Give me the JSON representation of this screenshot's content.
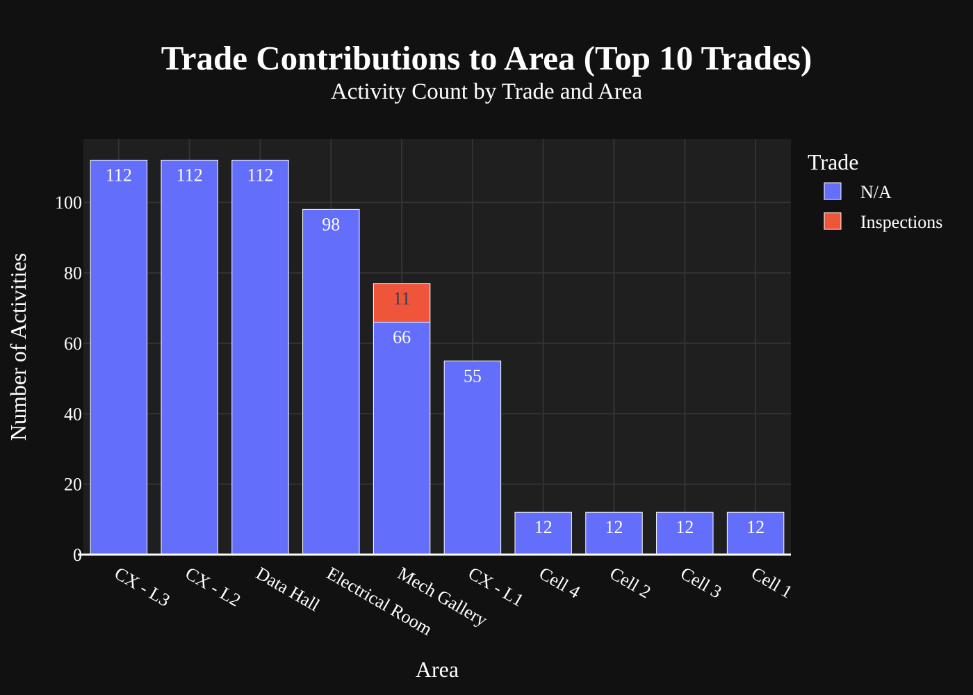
{
  "chart_data": {
    "type": "bar",
    "barmode": "stack",
    "title": "Trade Contributions to Area (Top 10 Trades)",
    "subtitle": "Activity Count by Trade and Area",
    "xlabel": "Area",
    "ylabel": "Number of Activities",
    "ylim": [
      0,
      118
    ],
    "yticks": [
      0,
      20,
      40,
      60,
      80,
      100
    ],
    "grid": true,
    "legend_title": "Trade",
    "legend_position": "top-right",
    "categories": [
      "CX - L3",
      "CX - L2",
      "Data Hall",
      "Electrical Room",
      "Mech Gallery",
      "CX - L1",
      "Cell 4",
      "Cell 2",
      "Cell 3",
      "Cell 1"
    ],
    "series": [
      {
        "name": "N/A",
        "color": "#636efa",
        "label_color": "#ffffff",
        "values": [
          112,
          112,
          112,
          98,
          66,
          55,
          12,
          12,
          12,
          12
        ]
      },
      {
        "name": "Inspections",
        "color": "#ef553b",
        "label_color": "#2a3f5f",
        "values": [
          null,
          null,
          null,
          null,
          11,
          null,
          null,
          null,
          null,
          null
        ]
      }
    ],
    "colors": {
      "background": "#111111",
      "plot_background": "#1f1f1f",
      "grid": "#333333",
      "axis_line": "#ffffff"
    }
  }
}
